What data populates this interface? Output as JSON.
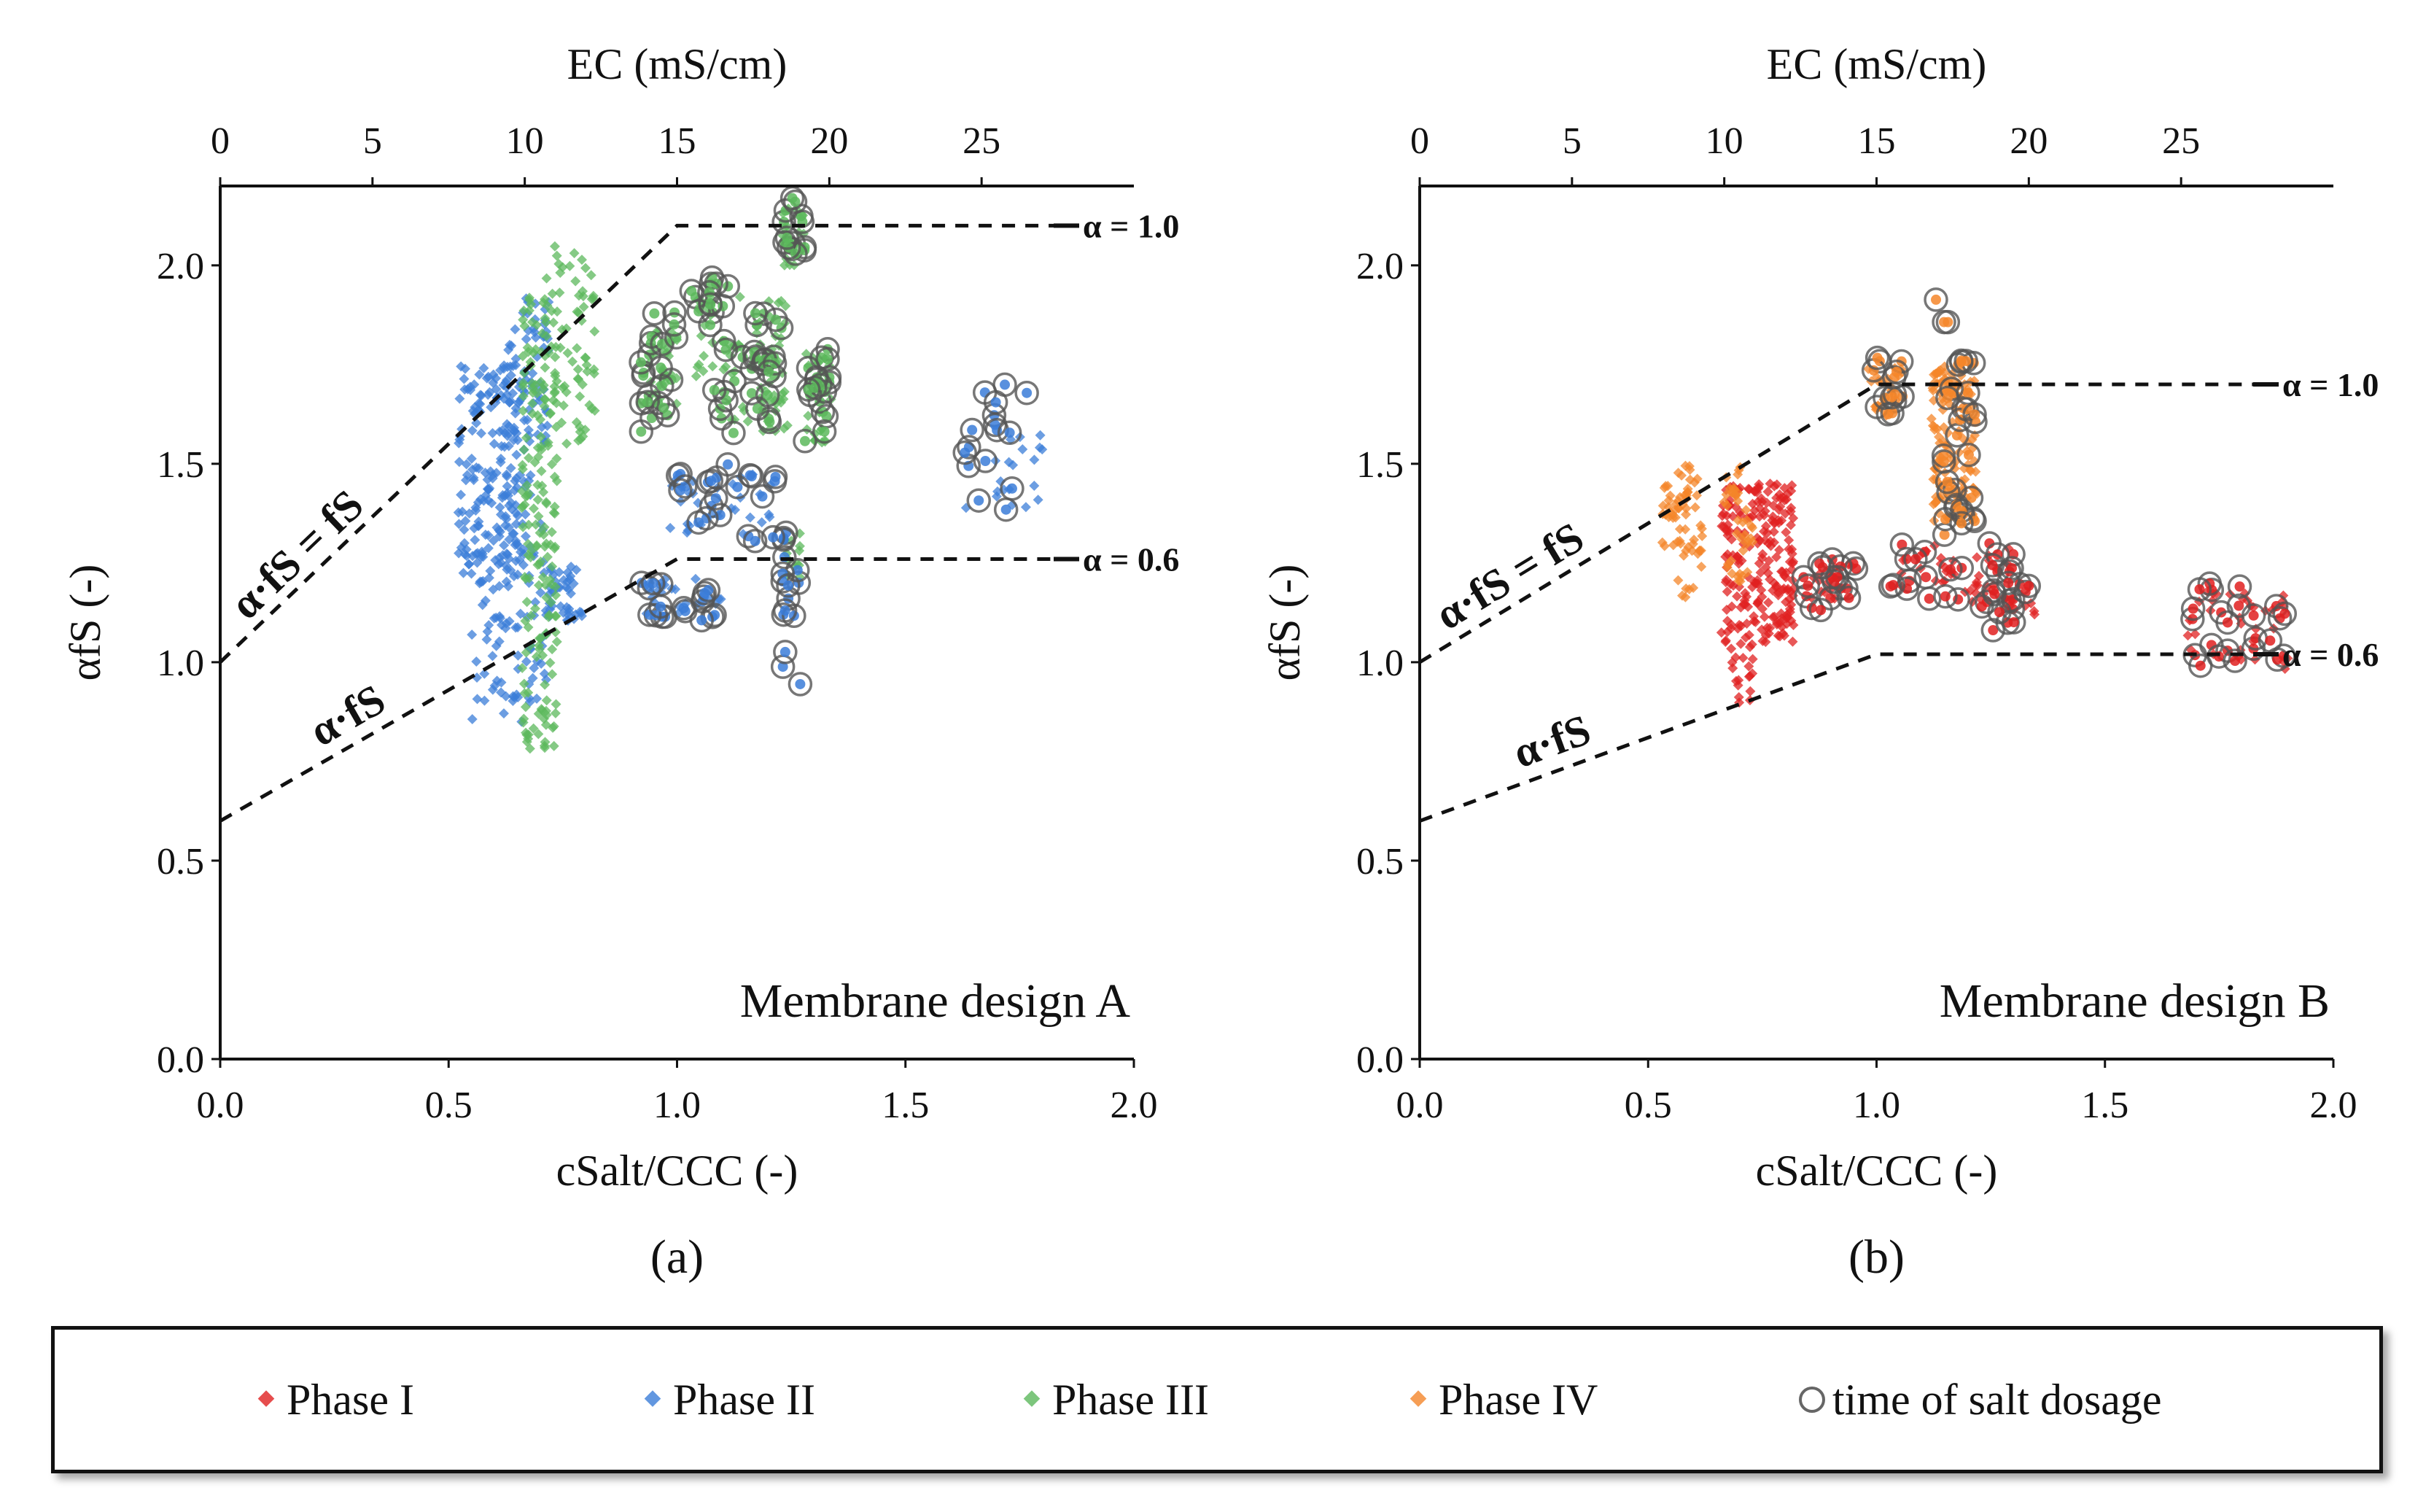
{
  "chart_data": [
    {
      "type": "scatter",
      "panel": "a",
      "panel_label": "(a)",
      "title": "Membrane design A",
      "xlabel": "cSalt/CCC (-)",
      "ylabel": "αfS (-)",
      "top_xlabel": "EC (mS/cm)",
      "xlim": [
        0,
        2.0
      ],
      "ylim": [
        0,
        2.2
      ],
      "top_xlim": [
        0,
        30
      ],
      "x_ticks": [
        "0.0",
        "0.5",
        "1.0",
        "1.5",
        "2.0"
      ],
      "y_ticks": [
        "0.0",
        "0.5",
        "1.0",
        "1.5",
        "2.0"
      ],
      "top_ticks": [
        "0",
        "5",
        "10",
        "15",
        "20",
        "25"
      ],
      "lines": [
        {
          "name": "α·fS = fS",
          "x": [
            0,
            1.0,
            2.0
          ],
          "y": [
            1.0,
            2.1,
            2.1
          ],
          "end_label": "α = 1.0"
        },
        {
          "name": "α·fS",
          "x": [
            0,
            1.0,
            2.0
          ],
          "y": [
            0.6,
            1.26,
            1.26
          ],
          "end_label": "α = 0.6"
        }
      ],
      "annotations": [
        "α·fS = fS",
        "α·fS"
      ],
      "series": [
        {
          "name": "Phase II",
          "color": "#3b7dd8",
          "clusters": [
            {
              "xr": [
                0.52,
                0.68
              ],
              "yr": [
                1.2,
                1.75
              ],
              "n": 200
            },
            {
              "xr": [
                0.55,
                0.72
              ],
              "yr": [
                0.9,
                1.35
              ],
              "n": 90
            },
            {
              "xr": [
                0.62,
                0.72
              ],
              "yr": [
                1.55,
                1.92
              ],
              "n": 60
            },
            {
              "xr": [
                0.72,
                0.8
              ],
              "yr": [
                1.1,
                1.25
              ],
              "n": 40
            },
            {
              "xr": [
                0.55,
                0.7
              ],
              "yr": [
                0.85,
                0.95
              ],
              "n": 6
            },
            {
              "xr": [
                0.92,
                1.1
              ],
              "yr": [
                1.12,
                1.22
              ],
              "n": 20
            },
            {
              "xr": [
                0.98,
                1.22
              ],
              "yr": [
                1.32,
                1.48
              ],
              "n": 30
            },
            {
              "xr": [
                1.63,
                1.8
              ],
              "yr": [
                1.38,
                1.58
              ],
              "n": 20
            }
          ]
        },
        {
          "name": "Phase III",
          "color": "#5cb85c",
          "clusters": [
            {
              "xr": [
                0.66,
                0.74
              ],
              "yr": [
                0.78,
                1.95
              ],
              "n": 180
            },
            {
              "xr": [
                0.7,
                0.82
              ],
              "yr": [
                1.55,
                2.05
              ],
              "n": 70
            },
            {
              "xr": [
                0.93,
                1.0
              ],
              "yr": [
                1.65,
                1.85
              ],
              "n": 30
            },
            {
              "xr": [
                1.03,
                1.14
              ],
              "yr": [
                1.72,
                1.95
              ],
              "n": 25
            },
            {
              "xr": [
                1.1,
                1.25
              ],
              "yr": [
                1.58,
                1.8
              ],
              "n": 30
            },
            {
              "xr": [
                1.17,
                1.24
              ],
              "yr": [
                1.62,
                1.92
              ],
              "n": 25
            },
            {
              "xr": [
                1.23,
                1.28
              ],
              "yr": [
                2.0,
                2.15
              ],
              "n": 18
            },
            {
              "xr": [
                1.23,
                1.27
              ],
              "yr": [
                1.2,
                1.35
              ],
              "n": 12
            },
            {
              "xr": [
                1.28,
                1.34
              ],
              "yr": [
                1.55,
                1.78
              ],
              "n": 25
            }
          ]
        }
      ],
      "salt_dosage": [
        {
          "xr": [
            0.92,
            1.0
          ],
          "yr": [
            1.55,
            1.9
          ],
          "n": 22
        },
        {
          "xr": [
            1.02,
            1.12
          ],
          "yr": [
            1.8,
            1.98
          ],
          "n": 14
        },
        {
          "xr": [
            1.08,
            1.18
          ],
          "yr": [
            1.55,
            1.82
          ],
          "n": 14
        },
        {
          "xr": [
            1.17,
            1.23
          ],
          "yr": [
            1.6,
            1.92
          ],
          "n": 16
        },
        {
          "xr": [
            1.23,
            1.28
          ],
          "yr": [
            2.0,
            2.17
          ],
          "n": 14
        },
        {
          "xr": [
            1.23,
            1.27
          ],
          "yr": [
            0.9,
            1.38
          ],
          "n": 16
        },
        {
          "xr": [
            1.28,
            1.34
          ],
          "yr": [
            1.52,
            1.8
          ],
          "n": 18
        },
        {
          "xr": [
            0.92,
            1.1
          ],
          "yr": [
            1.1,
            1.26
          ],
          "n": 18
        },
        {
          "xr": [
            0.98,
            1.22
          ],
          "yr": [
            1.3,
            1.5
          ],
          "n": 22
        },
        {
          "xr": [
            1.63,
            1.8
          ],
          "yr": [
            1.38,
            1.7
          ],
          "n": 16
        }
      ]
    },
    {
      "type": "scatter",
      "panel": "b",
      "panel_label": "(b)",
      "title": "Membrane design B",
      "xlabel": "cSalt/CCC (-)",
      "ylabel": "αfS (-)",
      "top_xlabel": "EC (mS/cm)",
      "xlim": [
        0,
        2.0
      ],
      "ylim": [
        0,
        2.2
      ],
      "top_xlim": [
        0,
        30
      ],
      "x_ticks": [
        "0.0",
        "0.5",
        "1.0",
        "1.5",
        "2.0"
      ],
      "y_ticks": [
        "0.0",
        "0.5",
        "1.0",
        "1.5",
        "2.0"
      ],
      "top_ticks": [
        "0",
        "5",
        "10",
        "15",
        "20",
        "25"
      ],
      "lines": [
        {
          "name": "α·fS = fS",
          "x": [
            0,
            1.0,
            2.0
          ],
          "y": [
            1.0,
            1.7,
            1.7
          ],
          "end_label": "α = 1.0"
        },
        {
          "name": "α·fS",
          "x": [
            0,
            1.0,
            2.0
          ],
          "y": [
            0.6,
            1.02,
            1.02
          ],
          "end_label": "α = 0.6"
        }
      ],
      "annotations": [
        "α·fS = fS",
        "α·fS"
      ],
      "series": [
        {
          "name": "Phase I",
          "color": "#e02020",
          "clusters": [
            {
              "xr": [
                0.66,
                0.82
              ],
              "yr": [
                1.05,
                1.45
              ],
              "n": 220
            },
            {
              "xr": [
                0.68,
                0.73
              ],
              "yr": [
                0.88,
                1.05
              ],
              "n": 20
            },
            {
              "xr": [
                0.85,
                0.95
              ],
              "yr": [
                1.15,
                1.25
              ],
              "n": 15
            },
            {
              "xr": [
                1.05,
                1.3
              ],
              "yr": [
                1.15,
                1.3
              ],
              "n": 35
            },
            {
              "xr": [
                1.2,
                1.35
              ],
              "yr": [
                1.12,
                1.2
              ],
              "n": 12
            },
            {
              "xr": [
                1.68,
                1.9
              ],
              "yr": [
                0.98,
                1.18
              ],
              "n": 35
            }
          ]
        },
        {
          "name": "Phase IV",
          "color": "#f4862a",
          "clusters": [
            {
              "xr": [
                0.53,
                0.62
              ],
              "yr": [
                1.28,
                1.5
              ],
              "n": 55
            },
            {
              "xr": [
                0.56,
                0.62
              ],
              "yr": [
                1.08,
                1.3
              ],
              "n": 12
            },
            {
              "xr": [
                0.66,
                0.73
              ],
              "yr": [
                1.2,
                1.5
              ],
              "n": 40
            },
            {
              "xr": [
                0.98,
                1.06
              ],
              "yr": [
                1.62,
                1.75
              ],
              "n": 20
            },
            {
              "xr": [
                1.12,
                1.22
              ],
              "yr": [
                1.35,
                1.75
              ],
              "n": 130
            }
          ]
        }
      ],
      "salt_dosage": [
        {
          "xr": [
            0.84,
            0.96
          ],
          "yr": [
            1.12,
            1.26
          ],
          "n": 18
        },
        {
          "xr": [
            0.98,
            1.06
          ],
          "yr": [
            1.62,
            1.78
          ],
          "n": 14
        },
        {
          "xr": [
            1.14,
            1.22
          ],
          "yr": [
            1.3,
            1.77
          ],
          "n": 30
        },
        {
          "xr": [
            1.03,
            1.3
          ],
          "yr": [
            1.15,
            1.3
          ],
          "n": 22
        },
        {
          "xr": [
            1.22,
            1.35
          ],
          "yr": [
            1.08,
            1.2
          ],
          "n": 14
        },
        {
          "xr": [
            1.68,
            1.9
          ],
          "yr": [
            0.98,
            1.2
          ],
          "n": 24
        },
        {
          "xr": [
            1.12,
            1.16
          ],
          "yr": [
            1.8,
            1.93
          ],
          "n": 3
        }
      ]
    }
  ],
  "legend": {
    "items": [
      {
        "label": "Phase I",
        "color": "#e02020",
        "marker": "diamond"
      },
      {
        "label": "Phase II",
        "color": "#3b7dd8",
        "marker": "diamond"
      },
      {
        "label": "Phase III",
        "color": "#5cb85c",
        "marker": "diamond"
      },
      {
        "label": "Phase IV",
        "color": "#f4862a",
        "marker": "diamond"
      },
      {
        "label": "time of salt dosage",
        "color": "#666666",
        "marker": "circle"
      }
    ]
  }
}
